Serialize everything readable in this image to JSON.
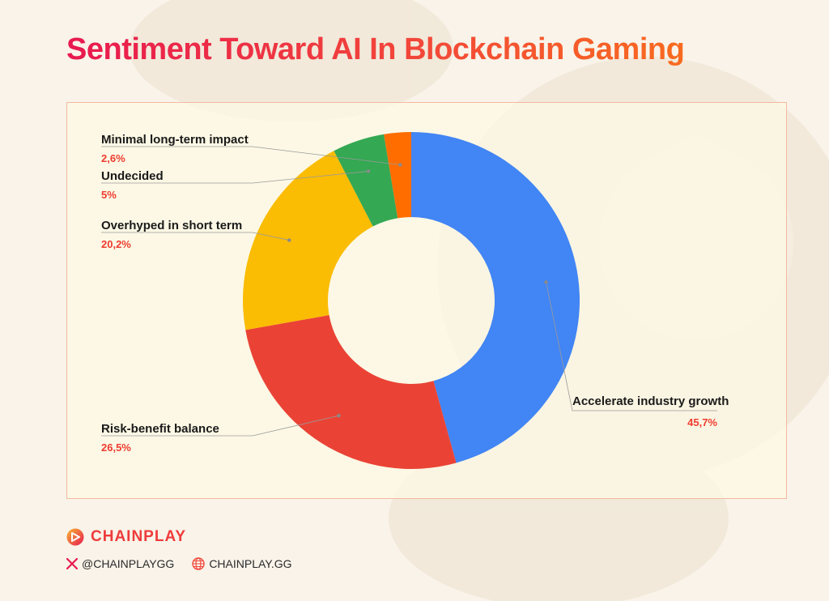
{
  "title": "Sentiment Toward AI In Blockchain Gaming",
  "chart_data": {
    "type": "pie",
    "variant": "donut",
    "title": "Sentiment Toward AI In Blockchain Gaming",
    "slices": [
      {
        "label": "Accelerate industry growth",
        "value_label": "45,7%",
        "value": 45.7,
        "color": "#4285f4"
      },
      {
        "label": "Risk-benefit balance",
        "value_label": "26,5%",
        "value": 26.5,
        "color": "#ea4335"
      },
      {
        "label": "Overhyped in short term",
        "value_label": "20,2%",
        "value": 20.2,
        "color": "#fbbc04"
      },
      {
        "label": "Undecided",
        "value_label": "5%",
        "value": 5,
        "color": "#34a853"
      },
      {
        "label": "Minimal long-term impact",
        "value_label": "2,6%",
        "value": 2.6,
        "color": "#ff6d01"
      }
    ],
    "start_angle": "12 o'clock",
    "direction": "clockwise",
    "legend": "none (callout labels)"
  },
  "footer": {
    "brand": "CHAINPLAY",
    "twitter": "@CHAINPLAYGG",
    "website": "CHAINPLAY.GG"
  },
  "colors": {
    "accent": "#ee3b3b",
    "title_gradient_start": "#e8194f",
    "title_gradient_end": "#f86b1f",
    "panel_border": "#f3b9a0",
    "panel_fill": "#fdf9e4",
    "background": "#f9f3e9"
  }
}
